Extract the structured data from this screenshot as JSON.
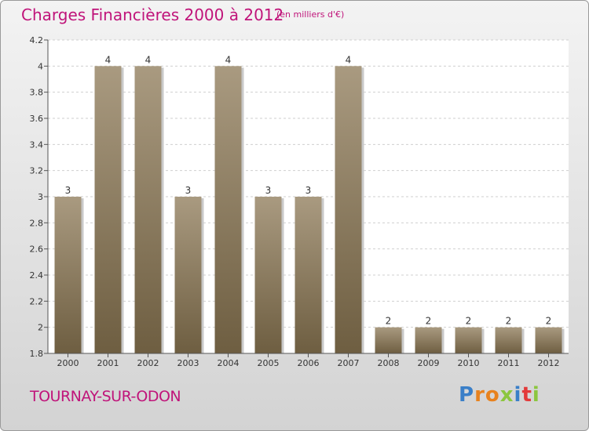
{
  "chart_data": {
    "type": "bar",
    "title": "Charges Financières 2000 à 2012",
    "subtitle": "(en milliers d'€)",
    "categories": [
      "2000",
      "2001",
      "2002",
      "2003",
      "2004",
      "2005",
      "2006",
      "2007",
      "2008",
      "2009",
      "2010",
      "2011",
      "2012"
    ],
    "values": [
      3,
      4,
      4,
      3,
      4,
      3,
      3,
      4,
      2,
      2,
      2,
      2,
      2
    ],
    "value_labels": [
      "3",
      "4",
      "4",
      "3",
      "4",
      "3",
      "3",
      "4",
      "2",
      "2",
      "2",
      "2",
      "2"
    ],
    "bar_heights_on_axis": [
      3,
      4,
      4,
      3,
      4,
      3,
      3,
      4,
      2,
      2,
      2,
      2,
      2
    ],
    "ylim": [
      1.8,
      4.2
    ],
    "yticks": [
      1.8,
      2,
      2.2,
      2.4,
      2.6,
      2.8,
      3,
      3.2,
      3.4,
      3.6,
      3.8,
      4,
      4.2
    ],
    "ytick_labels": [
      "1.8",
      "2",
      "2.2",
      "2.4",
      "2.6",
      "2.8",
      "3",
      "3.2",
      "3.4",
      "3.6",
      "3.8",
      "4",
      "4.2"
    ],
    "grid": true,
    "legend": false,
    "bar_color_top": "#a99a80",
    "bar_color_bottom": "#6e5e41",
    "title_color": "#c0147a"
  },
  "commune_name": "TOURNAY-SUR-ODON",
  "logo": {
    "letters": [
      "P",
      "r",
      "o",
      "x",
      "i",
      "t",
      "i"
    ],
    "colors": [
      "#3a7fc8",
      "#e8821e",
      "#e8821e",
      "#8cc63f",
      "#3a7fc8",
      "#e33a3a",
      "#8cc63f"
    ]
  }
}
